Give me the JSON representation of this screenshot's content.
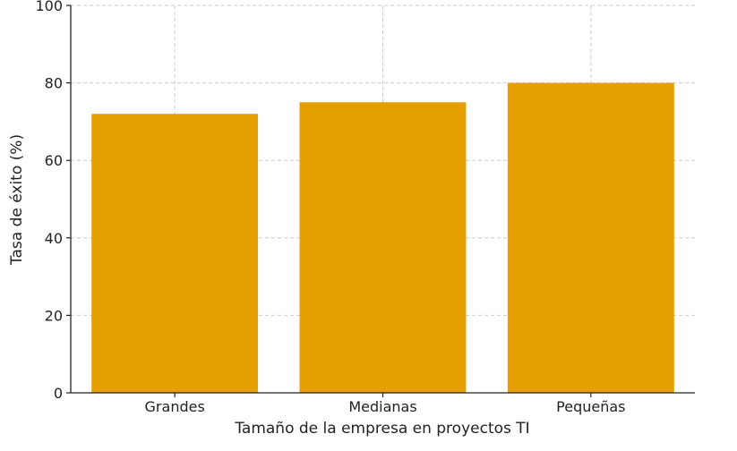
{
  "chart_data": {
    "type": "bar",
    "title": "",
    "xlabel": "Tamaño de la empresa en proyectos TI",
    "ylabel": "Tasa de éxito (%)",
    "categories": [
      "Grandes",
      "Medianas",
      "Pequeñas"
    ],
    "values": [
      72,
      75,
      80
    ],
    "ylim": [
      0,
      100
    ],
    "yticks": [
      0,
      20,
      40,
      60,
      80,
      100
    ],
    "grid": true,
    "legend": "none",
    "colors": {
      "bar": "#e59f00",
      "grid": "#cccccc",
      "axis": "#222222"
    }
  }
}
